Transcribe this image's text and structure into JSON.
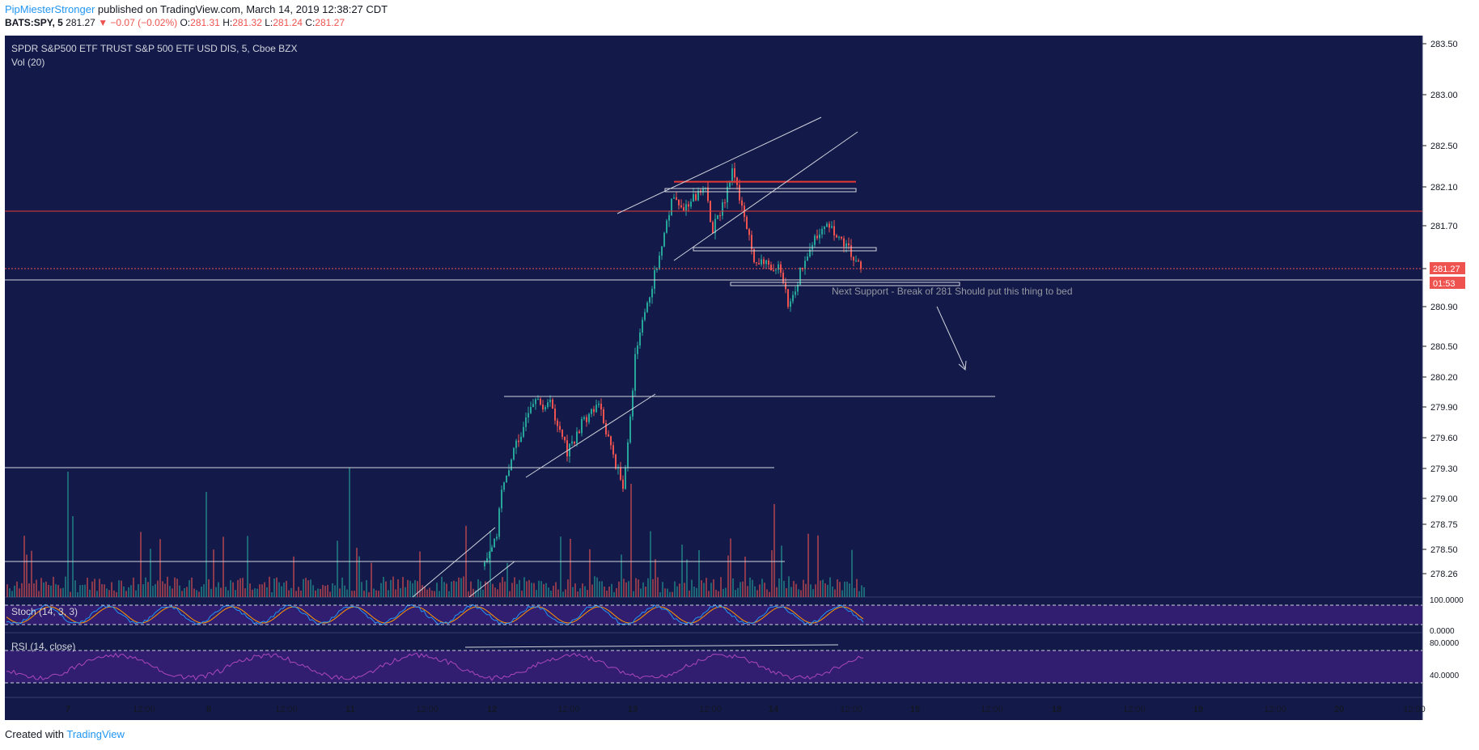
{
  "header": {
    "username": "PipMiesterStronger",
    "published_text": "published on TradingView.com, March 14, 2019 12:38:27 CDT",
    "symbol": "BATS:SPY, 5",
    "last": "281.27",
    "change": "▼ −0.07 (−0.02%)",
    "o_label": "O:",
    "o": "281.31",
    "h_label": "H:",
    "h": "281.32",
    "l_label": "L:",
    "l": "281.24",
    "c_label": "C:",
    "c": "281.27"
  },
  "chart": {
    "title": "SPDR S&P500 ETF TRUST S&P 500 ETF USD DIS, 5, Cboe BZX",
    "vol_label": "Vol (20)",
    "annotation": "Next Support - Break of 281 Should put this thing to bed",
    "price_tag": "281.27",
    "countdown_tag": "01:53",
    "stoch_label": "Stoch (14, 3, 3)",
    "rsi_label": "RSI (14, close)",
    "stoch_ticks": [
      "100.0000",
      "0.0000"
    ],
    "rsi_ticks": [
      "80.0000",
      "40.0000"
    ]
  },
  "colors": {
    "background": "#131a4a",
    "up": "#26a69a",
    "down": "#ef5350",
    "stoch_k": "#2196f3",
    "stoch_d": "#ff9800",
    "rsi": "#ab47bc",
    "resistance_line": "#e53935"
  },
  "chart_data": {
    "type": "candlestick",
    "y_axis_ticks": [
      "283.50",
      "283.00",
      "282.50",
      "282.10",
      "281.70",
      "281.30",
      "280.90",
      "280.50",
      "280.20",
      "279.90",
      "279.60",
      "279.30",
      "279.00",
      "278.75",
      "278.50",
      "278.26"
    ],
    "x_axis_ticks": [
      "7",
      "12:00",
      "8",
      "12:00",
      "11",
      "12:00",
      "12",
      "12:00",
      "13",
      "12:00",
      "14",
      "12:00",
      "15",
      "12:00",
      "18",
      "12:00",
      "19",
      "12:00",
      "20",
      "12:00"
    ],
    "ohlc_last": {
      "open": 281.31,
      "high": 281.32,
      "low": 281.24,
      "close": 281.27
    },
    "price_path": [
      {
        "x": "13 early",
        "y": 280.35
      },
      {
        "x": "13 mid",
        "y": 281.0
      },
      {
        "x": "13 late",
        "y": 281.85
      },
      {
        "x": "13 close",
        "y": 282.05
      },
      {
        "x": "13 12:00",
        "y": 281.65
      },
      {
        "x": "13 peak",
        "y": 282.3
      },
      {
        "x": "14 open",
        "y": 281.9
      },
      {
        "x": "14 drop",
        "y": 281.2
      },
      {
        "x": "14 low",
        "y": 280.75
      },
      {
        "x": "14 mid",
        "y": 281.3
      },
      {
        "x": "14 high",
        "y": 281.8
      },
      {
        "x": "14 last",
        "y": 281.27
      }
    ],
    "horizontal_levels": [
      282.15,
      282.05,
      281.85,
      281.45,
      281.12,
      280.1,
      279.35,
      278.4
    ],
    "stoch_range": [
      0,
      100
    ],
    "rsi_range": [
      40,
      80
    ]
  }
}
